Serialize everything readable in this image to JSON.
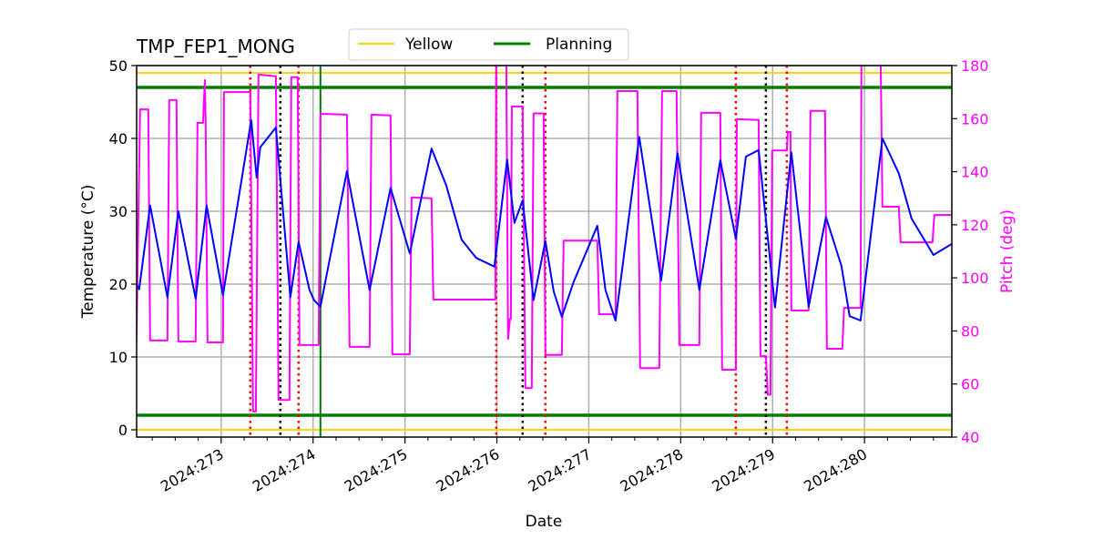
{
  "chart_data": {
    "type": "line",
    "title": "TMP_FEP1_MONG",
    "xlabel": "Date",
    "ylabel": "Temperature ($^\\circ$C)",
    "ylabel_display": "Temperature (°C)",
    "y2label": "Pitch (deg)",
    "xlim": [
      272.08,
      280.95
    ],
    "ylim": [
      -1,
      50
    ],
    "y2lim": [
      40,
      180
    ],
    "grid": true,
    "legend_placement": "top-center",
    "x_ticks": [
      273,
      274,
      275,
      276,
      277,
      278,
      279,
      280
    ],
    "x_tick_labels": [
      "2024:273",
      "2024:274",
      "2024:275",
      "2024:276",
      "2024:277",
      "2024:278",
      "2024:279",
      "2024:280"
    ],
    "y_ticks": [
      0,
      10,
      20,
      30,
      40,
      50
    ],
    "y2_ticks": [
      40,
      60,
      80,
      100,
      120,
      140,
      160,
      180
    ],
    "colors": {
      "temperature": "#0000ff",
      "pitch": "#ff00ff",
      "yellow": "#ffd700",
      "planning": "#008000",
      "red_marker": "#ff0000",
      "black_marker": "#000000",
      "grid": "#b0b0b0"
    },
    "legend": [
      {
        "name": "Yellow",
        "color": "#ffd700"
      },
      {
        "name": "Planning",
        "color": "#008000"
      }
    ],
    "limits": {
      "yellow": [
        0,
        49
      ],
      "planning": [
        2,
        47
      ]
    },
    "vlines": {
      "red_dotted": [
        273.317,
        273.842,
        275.993,
        276.528,
        278.6,
        279.155
      ],
      "black_dotted": [
        273.644,
        276.28,
        278.927
      ],
      "green_solid": [
        274.08
      ]
    },
    "series": [
      {
        "axis": "left",
        "color": "#0000ff",
        "x": [
          272.078,
          272.108,
          272.227,
          272.415,
          272.534,
          272.722,
          272.841,
          273.02,
          273.327,
          273.386,
          273.426,
          273.595,
          273.753,
          273.842,
          273.961,
          274.011,
          274.08,
          274.368,
          274.615,
          274.843,
          275.052,
          275.289,
          275.448,
          275.616,
          275.775,
          275.973,
          276.112,
          276.191,
          276.28,
          276.399,
          276.528,
          276.618,
          276.706,
          276.835,
          277.093,
          277.181,
          277.291,
          277.549,
          277.787,
          277.965,
          278.203,
          278.431,
          278.6,
          278.709,
          278.848,
          279.026,
          279.204,
          279.392,
          279.58,
          279.749,
          279.838,
          279.957,
          280.195,
          280.373,
          280.512,
          280.75,
          280.948
        ],
        "y": [
          20,
          19.3,
          30.8,
          18.2,
          30,
          18,
          30.8,
          18.5,
          42.5,
          34.6,
          38.8,
          41.5,
          18.2,
          25.8,
          19.2,
          17.8,
          16.9,
          35.5,
          19.2,
          33.2,
          24.2,
          38.6,
          33.6,
          26.1,
          23.6,
          22.4,
          37.1,
          28.4,
          31.5,
          17.8,
          25.9,
          19,
          15.5,
          20.3,
          28,
          19.2,
          15,
          40.2,
          20.5,
          38,
          19.2,
          37,
          26.2,
          37.5,
          38.4,
          16.8,
          38.1,
          16.9,
          29.2,
          22.5,
          15.6,
          15,
          40,
          35.2,
          29,
          24,
          25.5
        ]
      },
      {
        "axis": "right",
        "color": "#ff00ff",
        "x": [
          272.078,
          272.118,
          272.207,
          272.227,
          272.415,
          272.435,
          272.514,
          272.534,
          272.722,
          272.742,
          272.802,
          272.822,
          272.831,
          272.851,
          273.02,
          273.03,
          273.317,
          273.347,
          273.377,
          273.406,
          273.595,
          273.624,
          273.743,
          273.763,
          273.832,
          273.852,
          274.06,
          274.08,
          274.368,
          274.397,
          274.615,
          274.635,
          274.843,
          274.863,
          275.052,
          275.072,
          275.289,
          275.309,
          275.983,
          275.993,
          276.102,
          276.122,
          276.142,
          276.152,
          276.162,
          276.28,
          276.31,
          276.379,
          276.399,
          276.508,
          276.528,
          276.706,
          276.726,
          277.093,
          277.113,
          277.291,
          277.311,
          277.529,
          277.559,
          277.767,
          277.797,
          277.955,
          277.985,
          278.203,
          278.223,
          278.431,
          278.451,
          278.6,
          278.61,
          278.848,
          278.868,
          278.927,
          278.947,
          278.977,
          278.996,
          279.155,
          279.165,
          279.195,
          279.204,
          279.392,
          279.412,
          279.57,
          279.59,
          279.759,
          279.778,
          279.957,
          279.967,
          280.175,
          280.195,
          280.373,
          280.393,
          280.74,
          280.76,
          280.948
        ],
        "y": [
          76,
          163.5,
          163.5,
          76.4,
          76.4,
          167,
          167,
          76,
          76,
          158.4,
          158.4,
          174.5,
          158.4,
          75.7,
          75.7,
          170,
          170,
          49.6,
          49.6,
          176.6,
          176,
          54,
          54,
          175.6,
          175.6,
          74.7,
          74.7,
          161.8,
          161.5,
          74,
          74,
          161.5,
          161.2,
          71.2,
          71.2,
          130.3,
          130,
          91.8,
          91.8,
          185,
          185,
          77,
          84.6,
          84.6,
          164.6,
          164.6,
          58.5,
          58.5,
          162,
          162,
          71,
          71,
          114,
          114,
          86.3,
          86.3,
          170.4,
          170.4,
          66,
          66,
          170.4,
          170.4,
          74.7,
          74.7,
          162.2,
          162.2,
          65.4,
          65.4,
          159.8,
          159.5,
          70.5,
          70.5,
          56,
          56,
          148,
          148,
          155,
          155,
          87.7,
          87.7,
          162.9,
          162.9,
          73.3,
          73.3,
          88.7,
          88.7,
          185,
          185,
          126.8,
          126.8,
          113.4,
          113.4,
          123.7,
          123.7
        ]
      }
    ]
  }
}
